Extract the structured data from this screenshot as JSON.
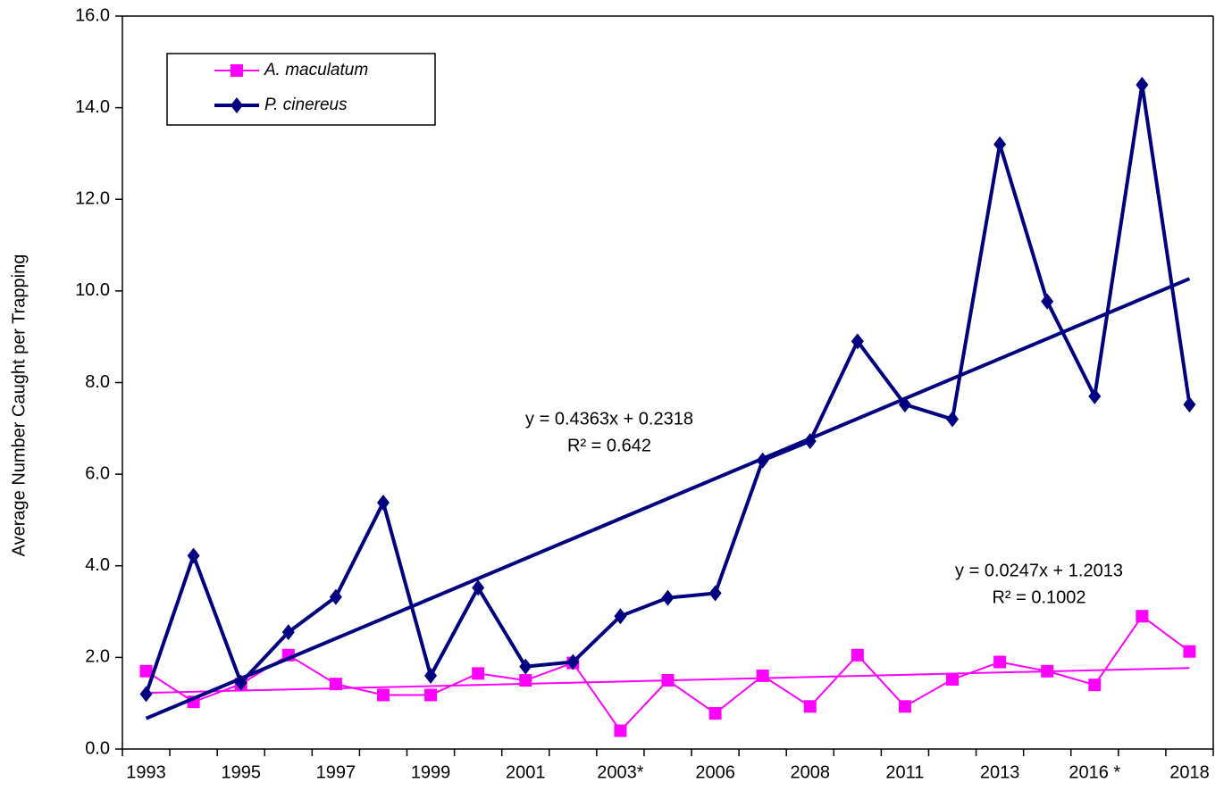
{
  "chart_data": {
    "type": "line",
    "ylabel": "Average Number Caught per Trapping",
    "categories": [
      "1993",
      null,
      "1995",
      null,
      "1997",
      null,
      "1999",
      null,
      "2001",
      null,
      "2003*",
      null,
      "2006",
      null,
      "2008",
      null,
      "2011",
      null,
      "2013",
      null,
      "2016 *",
      null,
      "2018"
    ],
    "series": [
      {
        "name": "A. maculatum",
        "color": "#ff00ff",
        "marker": "square",
        "values": [
          1.7,
          1.03,
          1.42,
          2.05,
          1.42,
          1.18,
          1.18,
          1.65,
          1.5,
          1.88,
          0.4,
          1.5,
          0.78,
          1.6,
          0.93,
          2.05,
          0.93,
          1.52,
          1.9,
          1.7,
          1.4,
          2.9,
          2.13
        ],
        "trendline": {
          "slope": 0.0247,
          "intercept": 1.2013,
          "equation": "y = 0.0247x + 1.2013",
          "r2": "R² = 0.1002"
        }
      },
      {
        "name": "P. cinereus",
        "color": "#000080",
        "marker": "diamond",
        "values": [
          1.2,
          4.22,
          1.45,
          2.55,
          3.32,
          5.38,
          1.6,
          3.52,
          1.8,
          1.9,
          2.9,
          3.3,
          3.4,
          6.3,
          6.72,
          8.9,
          7.52,
          7.2,
          13.2,
          9.77,
          7.7,
          14.5,
          7.52
        ],
        "trendline": {
          "slope": 0.4363,
          "intercept": 0.2318,
          "equation": "y = 0.4363x + 0.2318",
          "r2": "R² = 0.642"
        }
      }
    ],
    "ylim": [
      0,
      16
    ],
    "yticks": [
      {
        "value": 0,
        "label": "0.0"
      },
      {
        "value": 2,
        "label": "2.0"
      },
      {
        "value": 4,
        "label": "4.0"
      },
      {
        "value": 6,
        "label": "6.0"
      },
      {
        "value": 8,
        "label": "8.0"
      },
      {
        "value": 10,
        "label": "10.0"
      },
      {
        "value": 12,
        "label": "12.0"
      },
      {
        "value": 14,
        "label": "14.0"
      },
      {
        "value": 16,
        "label": "16.0"
      }
    ],
    "grid": false,
    "legend": "upper left"
  }
}
